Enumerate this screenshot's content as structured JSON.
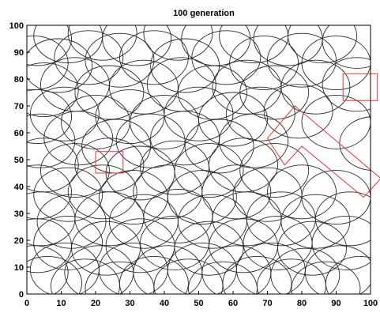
{
  "chart_data": {
    "type": "scatter",
    "title": "100 generation",
    "xlabel": "",
    "ylabel": "",
    "xlim": [
      0,
      100
    ],
    "ylim": [
      0,
      100
    ],
    "xticks": [
      0,
      10,
      20,
      30,
      40,
      50,
      60,
      70,
      80,
      90,
      100
    ],
    "yticks": [
      0,
      10,
      20,
      30,
      40,
      50,
      60,
      70,
      80,
      90,
      100
    ],
    "grid": false,
    "legend": "none",
    "colors": {
      "circles": "#2b2b2b",
      "obstacles": "#e8333a",
      "axes": "#000000",
      "background": "#ffffff"
    },
    "circle_radius": 10,
    "circles": [
      [
        3,
        95
      ],
      [
        12,
        96
      ],
      [
        22,
        97
      ],
      [
        32,
        95
      ],
      [
        44,
        97
      ],
      [
        55,
        95
      ],
      [
        66,
        96
      ],
      [
        76,
        95
      ],
      [
        86,
        96
      ],
      [
        96,
        94
      ],
      [
        2,
        86
      ],
      [
        9,
        85
      ],
      [
        18,
        88
      ],
      [
        27,
        87
      ],
      [
        37,
        88
      ],
      [
        46,
        85
      ],
      [
        58,
        88
      ],
      [
        69,
        86
      ],
      [
        80,
        87
      ],
      [
        90,
        86
      ],
      [
        5,
        76
      ],
      [
        14,
        78
      ],
      [
        24,
        75
      ],
      [
        34,
        77
      ],
      [
        45,
        78
      ],
      [
        54,
        75
      ],
      [
        64,
        77
      ],
      [
        72,
        75
      ],
      [
        84,
        77
      ],
      [
        96,
        78
      ],
      [
        3,
        66
      ],
      [
        11,
        67
      ],
      [
        20,
        64
      ],
      [
        30,
        66
      ],
      [
        40,
        64
      ],
      [
        50,
        67
      ],
      [
        60,
        65
      ],
      [
        68,
        67
      ],
      [
        79,
        68
      ],
      [
        90,
        64
      ],
      [
        4,
        57
      ],
      [
        15,
        58
      ],
      [
        26,
        55
      ],
      [
        36,
        57
      ],
      [
        46,
        58
      ],
      [
        56,
        55
      ],
      [
        66,
        57
      ],
      [
        101,
        56
      ],
      [
        5,
        48
      ],
      [
        14,
        46
      ],
      [
        24,
        48
      ],
      [
        33,
        45
      ],
      [
        43,
        47
      ],
      [
        53,
        46
      ],
      [
        63,
        48
      ],
      [
        72,
        46
      ],
      [
        3,
        38
      ],
      [
        12,
        37
      ],
      [
        22,
        38
      ],
      [
        31,
        36
      ],
      [
        41,
        38
      ],
      [
        51,
        36
      ],
      [
        61,
        38
      ],
      [
        70,
        37
      ],
      [
        80,
        38
      ],
      [
        90,
        36
      ],
      [
        4,
        28
      ],
      [
        13,
        27
      ],
      [
        24,
        28
      ],
      [
        34,
        27
      ],
      [
        44,
        29
      ],
      [
        54,
        27
      ],
      [
        64,
        28
      ],
      [
        74,
        28
      ],
      [
        84,
        27
      ],
      [
        94,
        28
      ],
      [
        3,
        18
      ],
      [
        12,
        19
      ],
      [
        23,
        17
      ],
      [
        33,
        18
      ],
      [
        43,
        19
      ],
      [
        53,
        17
      ],
      [
        63,
        18
      ],
      [
        73,
        19
      ],
      [
        83,
        17
      ],
      [
        93,
        19
      ],
      [
        2,
        8
      ],
      [
        11,
        9
      ],
      [
        21,
        8
      ],
      [
        31,
        9
      ],
      [
        41,
        8
      ],
      [
        51,
        9
      ],
      [
        61,
        8
      ],
      [
        71,
        9
      ],
      [
        81,
        7
      ],
      [
        91,
        8
      ],
      [
        6,
        4
      ],
      [
        17,
        3
      ],
      [
        27,
        2
      ],
      [
        37,
        4
      ],
      [
        47,
        3
      ],
      [
        57,
        2
      ],
      [
        67,
        4
      ],
      [
        77,
        3
      ],
      [
        87,
        2
      ],
      [
        97,
        4
      ]
    ],
    "obstacles": [
      {
        "shape": "rectangle",
        "points": [
          [
            92,
            72
          ],
          [
            102,
            72
          ],
          [
            102,
            82
          ],
          [
            92,
            82
          ]
        ]
      },
      {
        "shape": "rectangle",
        "points": [
          [
            20,
            45
          ],
          [
            28,
            45
          ],
          [
            28,
            53
          ],
          [
            20,
            53
          ]
        ]
      },
      {
        "shape": "polygon",
        "points": [
          [
            70,
            58
          ],
          [
            78,
            70
          ],
          [
            103,
            43
          ],
          [
            98,
            36
          ],
          [
            80,
            55
          ],
          [
            75,
            48
          ]
        ]
      }
    ]
  }
}
